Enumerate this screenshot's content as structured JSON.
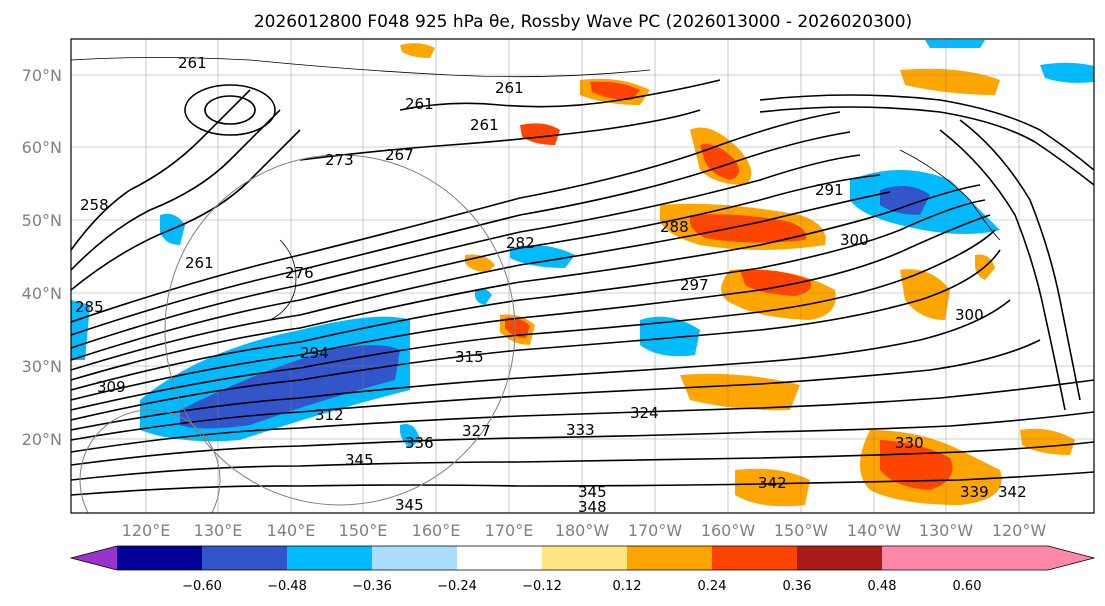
{
  "title": "2026012800 F048 925 hPa θe, Rossby Wave PC (2026013000 - 2026020300)",
  "map": {
    "lon_ticks": [
      "120°E",
      "130°E",
      "140°E",
      "150°E",
      "160°E",
      "170°E",
      "180°W",
      "170°W",
      "160°W",
      "150°W",
      "140°W",
      "130°W",
      "120°W"
    ],
    "lat_ticks": [
      "70°N",
      "60°N",
      "50°N",
      "40°N",
      "30°N",
      "20°N"
    ],
    "contour_labels": [
      "261",
      "261",
      "261",
      "261",
      "267",
      "273",
      "258",
      "261",
      "276",
      "285",
      "282",
      "288",
      "291",
      "297",
      "300",
      "300",
      "294",
      "312",
      "315",
      "324",
      "327",
      "333",
      "336",
      "345",
      "342",
      "345",
      "348",
      "339",
      "330",
      "342",
      "345",
      "309"
    ]
  },
  "colorbar": {
    "ticks": [
      "−0.60",
      "−0.48",
      "−0.36",
      "−0.24",
      "−0.12",
      "0.12",
      "0.24",
      "0.36",
      "0.48",
      "0.60"
    ],
    "colors": [
      "#9933cc",
      "#000099",
      "#3355cc",
      "#00bbff",
      "#aaddff",
      "#ffffff",
      "#ffe680",
      "#ffa500",
      "#ff4400",
      "#aa1a1a",
      "#ff88aa"
    ]
  }
}
